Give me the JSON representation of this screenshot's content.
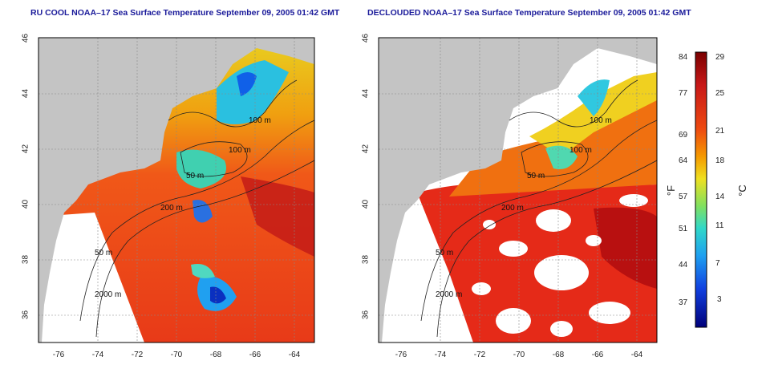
{
  "panels": [
    {
      "title": "RU COOL NOAA–17 Sea Surface Temperature September 09, 2005 01:42 GMT"
    },
    {
      "title": "DECLOUDED NOAA–17 Sea Surface Temperature September 09, 2005 01:42 GMT"
    }
  ],
  "axes": {
    "lat_ticks": [
      "46",
      "44",
      "42",
      "40",
      "38",
      "36"
    ],
    "lon_ticks": [
      "-76",
      "-74",
      "-72",
      "-70",
      "-68",
      "-66",
      "-64"
    ],
    "lat_range": [
      35,
      46
    ],
    "lon_range": [
      -77,
      -63
    ]
  },
  "contour_labels": [
    "100 m",
    "100 m",
    "50 m",
    "200 m",
    "50 m",
    "2000 m"
  ],
  "colorbar": {
    "fahrenheit_label": "°F",
    "celsius_label": "°C",
    "fahrenheit_ticks": [
      "84",
      "77",
      "69",
      "64",
      "57",
      "51",
      "44",
      "37"
    ],
    "celsius_ticks": [
      "29",
      "25",
      "21",
      "18",
      "14",
      "11",
      "7",
      "3"
    ],
    "colors": [
      "#8b0000",
      "#d42020",
      "#f06010",
      "#f5a000",
      "#f0e020",
      "#90e050",
      "#30d0c0",
      "#20a0f0",
      "#1040e0",
      "#0000a0"
    ]
  }
}
